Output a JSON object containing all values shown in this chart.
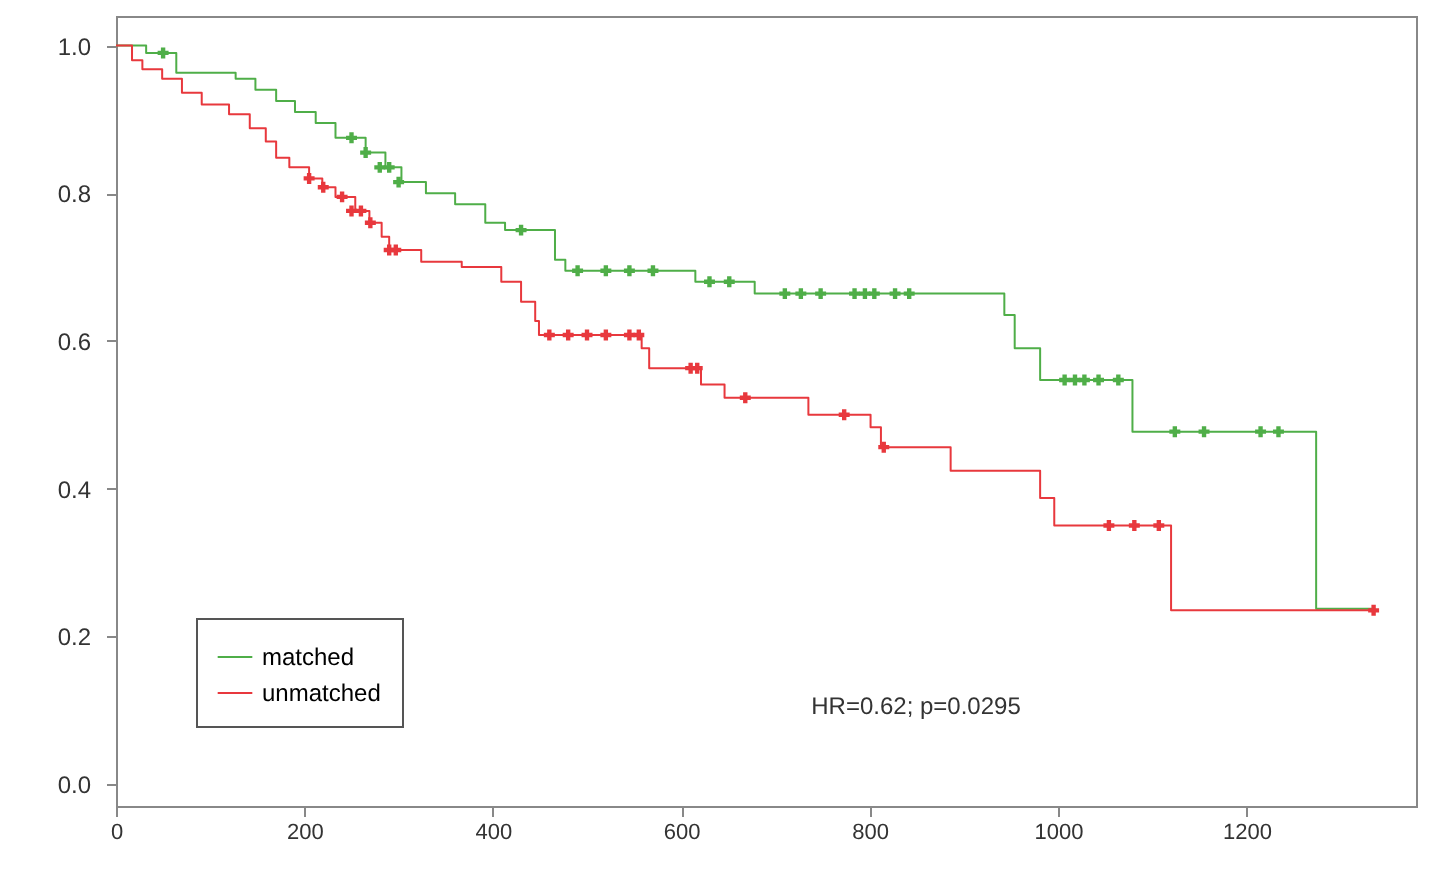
{
  "chart_data": {
    "type": "step",
    "xlim": [
      0,
      1380
    ],
    "ylim": [
      -0.03,
      1.04
    ],
    "xticks": [
      0,
      200,
      400,
      600,
      800,
      1000,
      1200
    ],
    "yticks": [
      {
        "value": 0,
        "label": "0.0"
      },
      {
        "value": 0.2,
        "label": "0.2"
      },
      {
        "value": 0.4,
        "label": "0.4"
      },
      {
        "value": 0.6,
        "label": "0.6"
      },
      {
        "value": 0.8,
        "label": "0.8"
      },
      {
        "value": 1,
        "label": "1.0"
      }
    ],
    "legend": "bottom left",
    "annotations": [
      "HR=0.62; p=0.0295"
    ],
    "series": [
      {
        "name": "matched",
        "marker": "none",
        "color": "#4fae48",
        "x": [
          0,
          32,
          64,
          127,
          148,
          170,
          190,
          212,
          233,
          265,
          286,
          303,
          329,
          360,
          392,
          413,
          466,
          477,
          615,
          678,
          943,
          954,
          981,
          1079,
          1274,
          1335
        ],
        "values": [
          1.0,
          0.99,
          0.963,
          0.955,
          0.94,
          0.925,
          0.91,
          0.895,
          0.875,
          0.855,
          0.835,
          0.815,
          0.8,
          0.785,
          0.76,
          0.75,
          0.71,
          0.695,
          0.68,
          0.664,
          0.635,
          0.59,
          0.547,
          0.477,
          0.237,
          0.237
        ]
      },
      {
        "name": "unmatched",
        "marker": "none",
        "color": "#e8383d",
        "x": [
          0,
          17,
          28,
          49,
          70,
          91,
          120,
          142,
          159,
          170,
          184,
          205,
          219,
          233,
          254,
          269,
          282,
          290,
          324,
          367,
          409,
          430,
          445,
          449,
          558,
          566,
          621,
          646,
          735,
          801,
          812,
          886,
          981,
          996,
          1120,
          1335
        ],
        "values": [
          1.0,
          0.98,
          0.968,
          0.955,
          0.936,
          0.92,
          0.907,
          0.888,
          0.87,
          0.848,
          0.835,
          0.82,
          0.808,
          0.795,
          0.776,
          0.76,
          0.741,
          0.723,
          0.707,
          0.7,
          0.68,
          0.653,
          0.627,
          0.608,
          0.59,
          0.563,
          0.541,
          0.523,
          0.5,
          0.483,
          0.456,
          0.424,
          0.387,
          0.35,
          0.235,
          0.235
        ]
      },
      {
        "type": "scatter",
        "marker": "cross",
        "color": "#4fae48",
        "x": [
          50,
          250,
          265,
          280,
          290,
          300,
          430,
          490,
          520,
          545,
          570,
          630,
          651,
          710,
          727,
          748,
          784,
          795,
          805,
          827,
          842,
          1007,
          1018,
          1028,
          1043,
          1064,
          1124,
          1155,
          1215,
          1234
        ],
        "values": [
          0.99,
          0.875,
          0.855,
          0.835,
          0.835,
          0.815,
          0.75,
          0.695,
          0.695,
          0.695,
          0.695,
          0.68,
          0.68,
          0.664,
          0.664,
          0.664,
          0.664,
          0.664,
          0.664,
          0.664,
          0.664,
          0.547,
          0.547,
          0.547,
          0.547,
          0.547,
          0.477,
          0.477,
          0.477,
          0.477
        ]
      },
      {
        "type": "scatter",
        "marker": "cross",
        "color": "#e8383d",
        "x": [
          205,
          220,
          240,
          250,
          260,
          270,
          290,
          297,
          460,
          480,
          500,
          520,
          545,
          555,
          610,
          617,
          668,
          773,
          815,
          1054,
          1081,
          1107,
          1335
        ],
        "values": [
          0.82,
          0.808,
          0.795,
          0.776,
          0.776,
          0.76,
          0.723,
          0.723,
          0.608,
          0.608,
          0.608,
          0.608,
          0.608,
          0.608,
          0.563,
          0.563,
          0.523,
          0.5,
          0.456,
          0.35,
          0.35,
          0.35,
          0.235
        ]
      }
    ]
  }
}
